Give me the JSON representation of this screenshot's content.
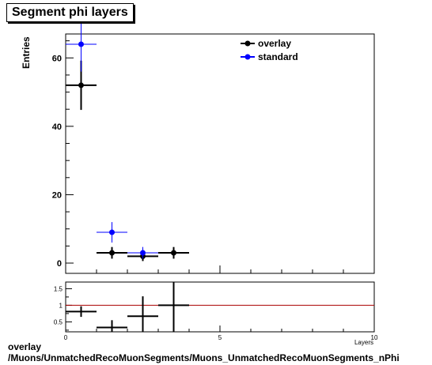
{
  "title": "Segment phi layers",
  "footer": {
    "line1": "overlay",
    "line2": "/Muons/UnmatchedRecoMuonSegments/Muons_UnmatchedRecoMuonSegments_nPhi"
  },
  "chart_data": {
    "type": "scatter",
    "ylabel": "Entries",
    "xlabel": "Layers",
    "xlim": [
      0,
      10
    ],
    "ylim": [
      -3,
      67
    ],
    "x_ticks": [
      0,
      5,
      10
    ],
    "y_ticks": [
      0,
      20,
      40,
      60
    ],
    "legend_position": "top-right",
    "series": [
      {
        "name": "overlay",
        "color": "#000000",
        "points": [
          {
            "x": 0.5,
            "y": 52,
            "xerr": 0.5,
            "yerr": 7.2
          },
          {
            "x": 1.5,
            "y": 3,
            "xerr": 0.5,
            "yerr": 1.7
          },
          {
            "x": 2.5,
            "y": 2,
            "xerr": 0.5,
            "yerr": 1.4
          },
          {
            "x": 3.5,
            "y": 3,
            "xerr": 0.5,
            "yerr": 1.7
          }
        ]
      },
      {
        "name": "standard",
        "color": "#0000ff",
        "points": [
          {
            "x": 0.5,
            "y": 64,
            "xerr": 0.5,
            "yerr": 8
          },
          {
            "x": 1.5,
            "y": 9,
            "xerr": 0.5,
            "yerr": 3
          },
          {
            "x": 2.5,
            "y": 3,
            "xerr": 0.5,
            "yerr": 1.7
          }
        ]
      }
    ],
    "ratio": {
      "ylim": [
        0.2,
        1.7
      ],
      "y_ticks": [
        0.5,
        1,
        1.5
      ],
      "reference_line": 1,
      "reference_color": "#aa0000",
      "points": [
        {
          "x": 0.5,
          "y": 0.81,
          "xerr": 0.5,
          "yerr": 0.16
        },
        {
          "x": 1.5,
          "y": 0.33,
          "xerr": 0.5,
          "yerr": 0.22
        },
        {
          "x": 2.5,
          "y": 0.67,
          "xerr": 0.5,
          "yerr": 0.6
        },
        {
          "x": 3.5,
          "y": 1.0,
          "xerr": 0.5,
          "yerr": 0.85
        }
      ]
    }
  }
}
